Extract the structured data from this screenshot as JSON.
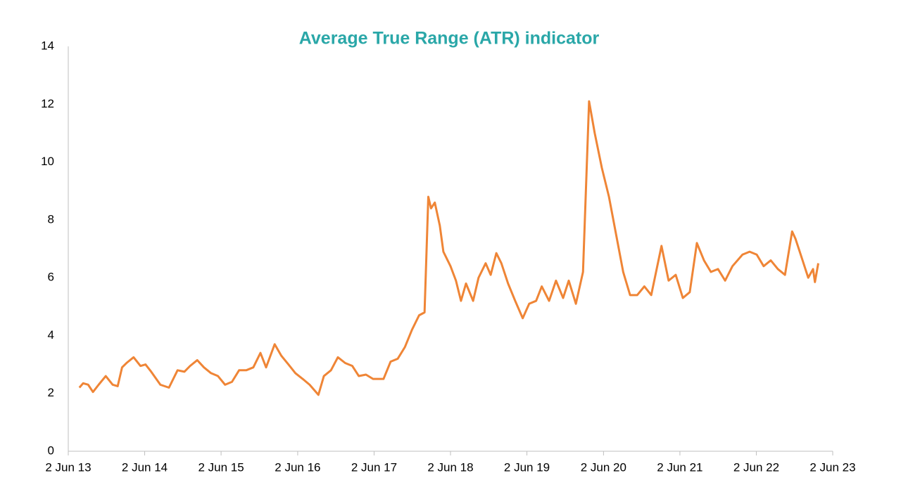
{
  "chart_data": {
    "type": "line",
    "title": "Average True Range (ATR) indicator",
    "x": [
      "2013-07-25",
      "2013-08-12",
      "2013-09-05",
      "2013-09-28",
      "2013-10-25",
      "2013-11-28",
      "2013-12-31",
      "2014-01-24",
      "2014-02-14",
      "2014-03-07",
      "2014-04-10",
      "2014-05-13",
      "2014-06-06",
      "2014-07-03",
      "2014-08-16",
      "2014-09-26",
      "2014-11-06",
      "2014-12-09",
      "2015-01-05",
      "2015-02-08",
      "2015-03-12",
      "2015-04-15",
      "2015-05-18",
      "2015-06-21",
      "2015-07-24",
      "2015-08-27",
      "2015-09-30",
      "2015-11-03",
      "2015-12-07",
      "2016-01-03",
      "2016-02-13",
      "2016-03-16",
      "2016-04-19",
      "2016-05-22",
      "2016-06-26",
      "2016-07-29",
      "2016-09-09",
      "2016-10-05",
      "2016-11-08",
      "2016-12-11",
      "2017-01-15",
      "2017-02-18",
      "2017-03-21",
      "2017-04-24",
      "2017-05-28",
      "2017-07-17",
      "2017-08-20",
      "2017-09-23",
      "2017-10-27",
      "2017-11-30",
      "2018-01-03",
      "2018-01-29",
      "2018-02-16",
      "2018-03-01",
      "2018-03-19",
      "2018-04-12",
      "2018-04-29",
      "2018-06-02",
      "2018-06-28",
      "2018-07-22",
      "2018-08-15",
      "2018-09-18",
      "2018-10-14",
      "2018-11-17",
      "2018-12-11",
      "2019-01-07",
      "2019-01-31",
      "2019-03-04",
      "2019-04-07",
      "2019-05-13",
      "2019-06-13",
      "2019-07-16",
      "2019-08-12",
      "2019-09-16",
      "2019-10-19",
      "2019-11-22",
      "2019-12-19",
      "2020-01-22",
      "2020-02-25",
      "2020-03-25",
      "2020-04-21",
      "2020-05-25",
      "2020-06-28",
      "2020-08-01",
      "2020-09-04",
      "2020-10-07",
      "2020-11-10",
      "2020-12-14",
      "2021-01-16",
      "2021-03-06",
      "2021-04-09",
      "2021-05-13",
      "2021-06-16",
      "2021-07-19",
      "2021-08-22",
      "2021-09-25",
      "2021-10-28",
      "2021-12-01",
      "2022-01-04",
      "2022-02-08",
      "2022-03-28",
      "2022-05-01",
      "2022-06-04",
      "2022-07-07",
      "2022-08-10",
      "2022-09-13",
      "2022-10-17",
      "2022-11-20",
      "2022-12-06",
      "2023-01-09",
      "2023-02-05",
      "2023-02-28",
      "2023-03-09",
      "2023-03-25"
    ],
    "values": [
      2.2,
      2.35,
      2.3,
      2.05,
      2.3,
      2.6,
      2.3,
      2.25,
      2.9,
      3.05,
      3.25,
      2.95,
      3.0,
      2.75,
      2.3,
      2.2,
      2.8,
      2.75,
      2.95,
      3.15,
      2.9,
      2.7,
      2.6,
      2.3,
      2.4,
      2.8,
      2.8,
      2.9,
      3.4,
      2.9,
      3.7,
      3.3,
      3.0,
      2.7,
      2.5,
      2.3,
      1.95,
      2.6,
      2.8,
      3.25,
      3.05,
      2.95,
      2.6,
      2.65,
      2.5,
      2.5,
      3.1,
      3.2,
      3.6,
      4.2,
      4.7,
      4.8,
      8.8,
      8.4,
      8.6,
      7.8,
      6.9,
      6.4,
      5.9,
      5.2,
      5.8,
      5.2,
      6.0,
      6.5,
      6.1,
      6.85,
      6.5,
      5.8,
      5.2,
      4.6,
      5.1,
      5.2,
      5.7,
      5.2,
      5.9,
      5.3,
      5.9,
      5.1,
      6.2,
      12.1,
      11.0,
      9.8,
      8.8,
      7.5,
      6.2,
      5.4,
      5.4,
      5.7,
      5.4,
      7.1,
      5.9,
      6.1,
      5.3,
      5.5,
      7.2,
      6.6,
      6.2,
      6.3,
      5.9,
      6.4,
      6.8,
      6.9,
      6.8,
      6.4,
      6.6,
      6.3,
      6.1,
      7.6,
      7.35,
      6.6,
      6.0,
      6.3,
      5.85,
      6.5
    ],
    "color": "#ef8536",
    "xlim": [
      "2013-06-02",
      "2023-06-02"
    ],
    "xticks": [
      {
        "value": "2013-06-02",
        "label": "2 Jun 13"
      },
      {
        "value": "2014-06-02",
        "label": "2 Jun 14"
      },
      {
        "value": "2015-06-02",
        "label": "2 Jun 15"
      },
      {
        "value": "2016-06-02",
        "label": "2 Jun 16"
      },
      {
        "value": "2017-06-02",
        "label": "2 Jun 17"
      },
      {
        "value": "2018-06-02",
        "label": "2 Jun 18"
      },
      {
        "value": "2019-06-02",
        "label": "2 Jun 19"
      },
      {
        "value": "2020-06-02",
        "label": "2 Jun 20"
      },
      {
        "value": "2021-06-02",
        "label": "2 Jun 21"
      },
      {
        "value": "2022-06-02",
        "label": "2 Jun 22"
      },
      {
        "value": "2023-06-02",
        "label": "2 Jun 23"
      }
    ],
    "ylim": [
      0,
      14
    ],
    "yticks": [
      0,
      2,
      4,
      6,
      8,
      10,
      12,
      14
    ],
    "grid": false
  }
}
